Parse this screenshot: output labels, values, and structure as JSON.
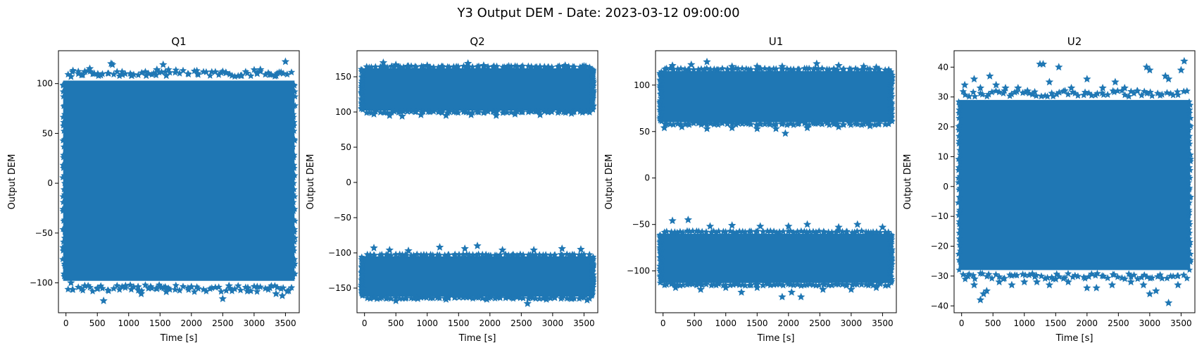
{
  "figure": {
    "suptitle": "Y3 Output DEM - Date: 2023-03-12 09:00:00"
  },
  "style": {
    "marker_color": "#1f77b4",
    "marker": "star"
  },
  "chart_data": [
    {
      "type": "scatter",
      "title": "Q1",
      "xlabel": "Time [s]",
      "ylabel": "Output DEM",
      "xlim": [
        -120,
        3720
      ],
      "ylim": [
        -130,
        133
      ],
      "xticks": [
        0,
        500,
        1000,
        1500,
        2000,
        2500,
        3000,
        3500
      ],
      "yticks": [
        -100,
        -50,
        0,
        50,
        100
      ],
      "tick_labels_y": [
        "−100",
        "−50",
        "0",
        "50",
        "100"
      ],
      "x_range": [
        0,
        3600
      ],
      "bands": [
        {
          "y_min": -98,
          "y_max": 103
        }
      ],
      "outliers": [
        [
          80,
          107
        ],
        [
          200,
          110
        ],
        [
          300,
          112
        ],
        [
          380,
          115
        ],
        [
          450,
          110
        ],
        [
          520,
          108
        ],
        [
          720,
          120
        ],
        [
          740,
          119
        ],
        [
          900,
          109
        ],
        [
          1050,
          108
        ],
        [
          1280,
          108
        ],
        [
          1400,
          110
        ],
        [
          1450,
          114
        ],
        [
          1550,
          119
        ],
        [
          1600,
          108
        ],
        [
          2100,
          110
        ],
        [
          2500,
          112
        ],
        [
          2550,
          111
        ],
        [
          2800,
          108
        ],
        [
          3050,
          110
        ],
        [
          3100,
          114
        ],
        [
          3250,
          109
        ],
        [
          3350,
          108
        ],
        [
          3400,
          111
        ],
        [
          3500,
          122
        ],
        [
          80,
          -100
        ],
        [
          300,
          -103
        ],
        [
          500,
          -106
        ],
        [
          600,
          -118
        ],
        [
          950,
          -103
        ],
        [
          1150,
          -104
        ],
        [
          1200,
          -111
        ],
        [
          1350,
          -104
        ],
        [
          1450,
          -106
        ],
        [
          1560,
          -105
        ],
        [
          1600,
          -109
        ],
        [
          2000,
          -104
        ],
        [
          2500,
          -116
        ],
        [
          2600,
          -103
        ],
        [
          2900,
          -105
        ],
        [
          3050,
          -104
        ],
        [
          3250,
          -105
        ],
        [
          3350,
          -111
        ],
        [
          3450,
          -113
        ],
        [
          3550,
          -108
        ]
      ]
    },
    {
      "type": "scatter",
      "title": "Q2",
      "xlabel": "Time [s]",
      "ylabel": "Output DEM",
      "xlim": [
        -120,
        3720
      ],
      "ylim": [
        -185,
        187
      ],
      "xticks": [
        0,
        500,
        1000,
        1500,
        2000,
        2500,
        3000,
        3500
      ],
      "yticks": [
        -150,
        -100,
        -50,
        0,
        50,
        100,
        150
      ],
      "tick_labels_y": [
        "−150",
        "−100",
        "−50",
        "0",
        "50",
        "100",
        "150"
      ],
      "x_range": [
        0,
        3600
      ],
      "bands": [
        {
          "y_min": 102,
          "y_max": 162
        },
        {
          "y_min": -162,
          "y_max": -105
        }
      ],
      "outliers": [
        [
          300,
          170
        ],
        [
          500,
          167
        ],
        [
          700,
          165
        ],
        [
          1000,
          166
        ],
        [
          1250,
          164
        ],
        [
          1650,
          169
        ],
        [
          1900,
          166
        ],
        [
          2300,
          165
        ],
        [
          2800,
          164
        ],
        [
          3200,
          166
        ],
        [
          3500,
          165
        ],
        [
          150,
          97
        ],
        [
          400,
          95
        ],
        [
          600,
          94
        ],
        [
          900,
          96
        ],
        [
          1300,
          95
        ],
        [
          1700,
          96
        ],
        [
          2100,
          95
        ],
        [
          2400,
          97
        ],
        [
          2800,
          96
        ],
        [
          3300,
          98
        ],
        [
          150,
          -93
        ],
        [
          400,
          -96
        ],
        [
          700,
          -97
        ],
        [
          1200,
          -92
        ],
        [
          1600,
          -94
        ],
        [
          1800,
          -90
        ],
        [
          2200,
          -96
        ],
        [
          2700,
          -96
        ],
        [
          3150,
          -94
        ],
        [
          3450,
          -95
        ],
        [
          200,
          -165
        ],
        [
          500,
          -168
        ],
        [
          850,
          -165
        ],
        [
          1300,
          -166
        ],
        [
          1950,
          -166
        ],
        [
          2600,
          -172
        ],
        [
          2900,
          -166
        ],
        [
          3300,
          -165
        ],
        [
          3550,
          -167
        ]
      ]
    },
    {
      "type": "scatter",
      "title": "U1",
      "xlabel": "Time [s]",
      "ylabel": "Output DEM",
      "xlim": [
        -120,
        3720
      ],
      "ylim": [
        -145,
        137
      ],
      "xticks": [
        0,
        500,
        1000,
        1500,
        2000,
        2500,
        3000,
        3500
      ],
      "yticks": [
        -100,
        -50,
        0,
        50,
        100
      ],
      "tick_labels_y": [
        "−100",
        "−50",
        "0",
        "50",
        "100"
      ],
      "x_range": [
        0,
        3600
      ],
      "bands": [
        {
          "y_min": 60,
          "y_max": 115
        },
        {
          "y_min": -113,
          "y_max": -60
        }
      ],
      "outliers": [
        [
          150,
          121
        ],
        [
          450,
          122
        ],
        [
          700,
          125
        ],
        [
          1100,
          120
        ],
        [
          1500,
          120
        ],
        [
          1900,
          120
        ],
        [
          2450,
          123
        ],
        [
          2800,
          121
        ],
        [
          3200,
          120
        ],
        [
          3400,
          119
        ],
        [
          20,
          54
        ],
        [
          300,
          55
        ],
        [
          700,
          53
        ],
        [
          1100,
          54
        ],
        [
          1500,
          53
        ],
        [
          1800,
          53
        ],
        [
          1950,
          48
        ],
        [
          2300,
          54
        ],
        [
          2800,
          55
        ],
        [
          3300,
          56
        ],
        [
          150,
          -46
        ],
        [
          400,
          -45
        ],
        [
          750,
          -52
        ],
        [
          1100,
          -51
        ],
        [
          1550,
          -52
        ],
        [
          2000,
          -52
        ],
        [
          2300,
          -50
        ],
        [
          2800,
          -53
        ],
        [
          3100,
          -50
        ],
        [
          3500,
          -53
        ],
        [
          200,
          -118
        ],
        [
          600,
          -120
        ],
        [
          1000,
          -118
        ],
        [
          1250,
          -123
        ],
        [
          1500,
          -118
        ],
        [
          1900,
          -128
        ],
        [
          2050,
          -123
        ],
        [
          2200,
          -128
        ],
        [
          2550,
          -120
        ],
        [
          3000,
          -120
        ],
        [
          3400,
          -118
        ]
      ]
    },
    {
      "type": "scatter",
      "title": "U2",
      "xlabel": "Time [s]",
      "ylabel": "Output DEM",
      "xlim": [
        -120,
        3720
      ],
      "ylim": [
        -42.3,
        45.5
      ],
      "xticks": [
        0,
        500,
        1000,
        1500,
        2000,
        2500,
        3000,
        3500
      ],
      "yticks": [
        -40,
        -30,
        -20,
        -10,
        0,
        10,
        20,
        30,
        40
      ],
      "tick_labels_y": [
        "−40",
        "−30",
        "−20",
        "−10",
        "0",
        "10",
        "20",
        "30",
        "40"
      ],
      "x_range": [
        0,
        3600
      ],
      "bands": [
        {
          "y_min": -28,
          "y_max": 29
        }
      ],
      "outliers": [
        [
          50,
          34
        ],
        [
          200,
          36
        ],
        [
          300,
          33
        ],
        [
          450,
          37
        ],
        [
          550,
          34
        ],
        [
          700,
          33
        ],
        [
          900,
          33
        ],
        [
          1050,
          32
        ],
        [
          1250,
          41
        ],
        [
          1300,
          41
        ],
        [
          1400,
          35
        ],
        [
          1550,
          40
        ],
        [
          1750,
          33
        ],
        [
          2000,
          36
        ],
        [
          2250,
          33
        ],
        [
          2450,
          35
        ],
        [
          2600,
          33
        ],
        [
          2800,
          32
        ],
        [
          2950,
          40
        ],
        [
          3000,
          39
        ],
        [
          3250,
          37
        ],
        [
          3300,
          36
        ],
        [
          3500,
          39
        ],
        [
          3550,
          42
        ],
        [
          100,
          -30
        ],
        [
          200,
          -33
        ],
        [
          300,
          -38
        ],
        [
          350,
          -36
        ],
        [
          400,
          -35
        ],
        [
          600,
          -32
        ],
        [
          800,
          -33
        ],
        [
          1000,
          -32
        ],
        [
          1200,
          -32
        ],
        [
          1400,
          -33
        ],
        [
          1500,
          -31
        ],
        [
          1700,
          -32
        ],
        [
          2000,
          -34
        ],
        [
          2150,
          -34
        ],
        [
          2400,
          -33
        ],
        [
          2700,
          -32
        ],
        [
          2900,
          -33
        ],
        [
          3000,
          -36
        ],
        [
          3100,
          -35
        ],
        [
          3300,
          -39
        ],
        [
          3450,
          -33
        ]
      ]
    }
  ]
}
